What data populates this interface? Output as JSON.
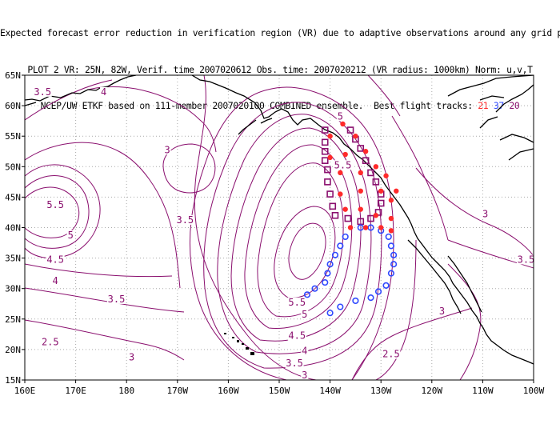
{
  "title_lines": [
    "Expected forecast error reduction in verification region (VR) due to adaptive observations around any grid point.",
    "PLOT 2 VR: 25N, 82W, Verif. time 2007020612 Obs. time: 2007020212 (VR radius: 1000km) Norm: u,v,T",
    "NCEP/UW ETKF based on 111-member 2007020100 COMBINED ensemble.  Best flight tracks:"
  ],
  "best_tracks": [
    {
      "label": "21",
      "color": "#ff2a2a",
      "marker": "filled-circle"
    },
    {
      "label": "37",
      "color": "#2f49ff",
      "marker": "open-circle"
    },
    {
      "label": "20",
      "color": "#8a0f6e",
      "marker": "open-square"
    }
  ],
  "map": {
    "lon_range": [
      160,
      260
    ],
    "lat_range": [
      15,
      65
    ],
    "lon_ticks": [
      "160E",
      "170E",
      "180",
      "170W",
      "160W",
      "150W",
      "140W",
      "130W",
      "120W",
      "110W",
      "100W"
    ],
    "lat_ticks": [
      "15N",
      "20N",
      "25N",
      "30N",
      "35N",
      "40N",
      "45N",
      "50N",
      "55N",
      "60N",
      "65N"
    ],
    "grid": "dotted",
    "contour_color": "#8a0f6e",
    "coast_color": "#000000"
  },
  "contour_labels": [
    {
      "text": "3.5",
      "lon": 163.5,
      "lat": 62
    },
    {
      "text": "4",
      "lon": 175.5,
      "lat": 62
    },
    {
      "text": "3",
      "lon": 188,
      "lat": 52.5
    },
    {
      "text": "5.5",
      "lon": 166,
      "lat": 43.5
    },
    {
      "text": "5",
      "lon": 169,
      "lat": 38.5
    },
    {
      "text": "4.5",
      "lon": 166,
      "lat": 34.5
    },
    {
      "text": "4",
      "lon": 166,
      "lat": 31
    },
    {
      "text": "3.5",
      "lon": 191.5,
      "lat": 41
    },
    {
      "text": "3.5",
      "lon": 178,
      "lat": 28
    },
    {
      "text": "2.5",
      "lon": 165,
      "lat": 21
    },
    {
      "text": "3",
      "lon": 181,
      "lat": 18.5
    },
    {
      "text": "5",
      "lon": 222,
      "lat": 58
    },
    {
      "text": "5.5",
      "lon": 222.5,
      "lat": 50
    },
    {
      "text": "5.5",
      "lon": 213.5,
      "lat": 27.5
    },
    {
      "text": "5",
      "lon": 215,
      "lat": 25.5
    },
    {
      "text": "4.5",
      "lon": 213.5,
      "lat": 22
    },
    {
      "text": "4",
      "lon": 215,
      "lat": 19.5
    },
    {
      "text": "3.5",
      "lon": 213,
      "lat": 17.5
    },
    {
      "text": "3",
      "lon": 215,
      "lat": 15.5
    },
    {
      "text": "2.5",
      "lon": 232,
      "lat": 19
    },
    {
      "text": "3",
      "lon": 242,
      "lat": 26
    },
    {
      "text": "3",
      "lon": 250.5,
      "lat": 42
    },
    {
      "text": "3.5",
      "lon": 258.5,
      "lat": 34.5
    }
  ],
  "tracks": {
    "red": [
      [
        222.5,
        57
      ],
      [
        220,
        55
      ],
      [
        225,
        55
      ],
      [
        220,
        51.5
      ],
      [
        223,
        52
      ],
      [
        227,
        52.5
      ],
      [
        222,
        49
      ],
      [
        226,
        49
      ],
      [
        229,
        50
      ],
      [
        231,
        48.5
      ],
      [
        222,
        45.5
      ],
      [
        226,
        46
      ],
      [
        230,
        46
      ],
      [
        232,
        44.5
      ],
      [
        233,
        46
      ],
      [
        223,
        43
      ],
      [
        226,
        43
      ],
      [
        229,
        42
      ],
      [
        232,
        41.5
      ],
      [
        224,
        40
      ],
      [
        227,
        40
      ],
      [
        230,
        40
      ],
      [
        232,
        39.5
      ]
    ],
    "blue": [
      [
        226,
        40
      ],
      [
        228,
        40
      ],
      [
        230,
        39.5
      ],
      [
        223,
        38.5
      ],
      [
        231.5,
        38.5
      ],
      [
        222,
        37
      ],
      [
        232,
        37
      ],
      [
        221,
        35.5
      ],
      [
        232.5,
        35.5
      ],
      [
        220,
        34
      ],
      [
        232.5,
        34
      ],
      [
        219.5,
        32.5
      ],
      [
        232,
        32.5
      ],
      [
        219,
        31
      ],
      [
        231,
        30.5
      ],
      [
        217,
        30
      ],
      [
        229.5,
        29.5
      ],
      [
        215.5,
        29
      ],
      [
        228,
        28.5
      ],
      [
        225,
        28
      ],
      [
        222,
        27
      ],
      [
        220,
        26
      ]
    ],
    "purple": [
      [
        219,
        56
      ],
      [
        224,
        56
      ],
      [
        219,
        54
      ],
      [
        225,
        54.5
      ],
      [
        219,
        52.5
      ],
      [
        226,
        53
      ],
      [
        219,
        51
      ],
      [
        227,
        51
      ],
      [
        219.5,
        49.5
      ],
      [
        228,
        49
      ],
      [
        219.5,
        47.5
      ],
      [
        229,
        47.5
      ],
      [
        220,
        45.5
      ],
      [
        230,
        45.5
      ],
      [
        220.5,
        43.5
      ],
      [
        230,
        44
      ],
      [
        221,
        42
      ],
      [
        229.5,
        42.5
      ],
      [
        223.5,
        41.5
      ],
      [
        228,
        41.5
      ],
      [
        226,
        41
      ]
    ]
  }
}
